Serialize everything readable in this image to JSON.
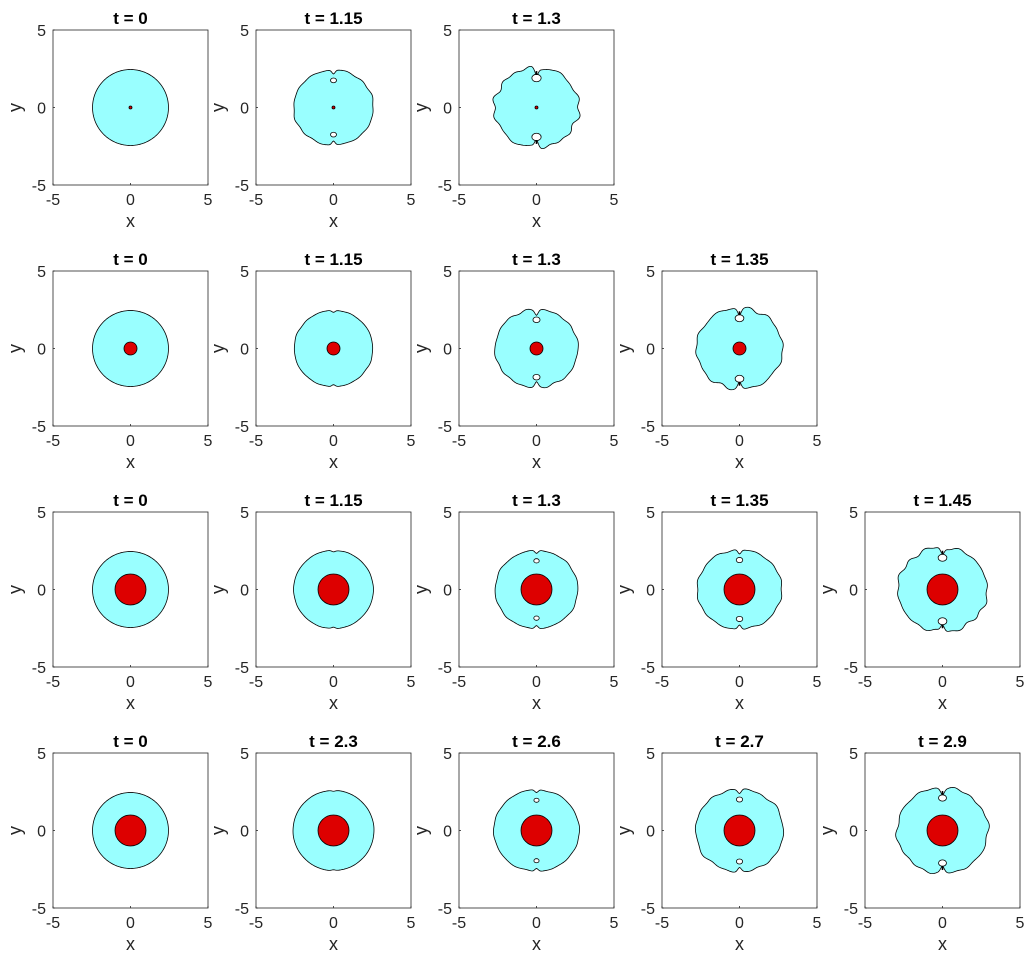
{
  "colors": {
    "drop": "#99ffff",
    "core": "#dd0000",
    "outline": "#000000"
  },
  "chart_data": [
    {
      "type": "contour",
      "xlabel": "x",
      "ylabel": "y",
      "xlim": [
        -5,
        5
      ],
      "ylim": [
        -5,
        5
      ],
      "xticks": [
        "-5",
        "0",
        "5"
      ],
      "yticks": [
        "5",
        "0",
        "-5"
      ],
      "grid": false,
      "rows": [
        {
          "core_radius": 0.06,
          "panels": [
            {
              "title": "t = 0",
              "radius": 2.45,
              "deformation": 0
            },
            {
              "title": "t = 1.15",
              "radius": 2.5,
              "deformation": 0.4
            },
            {
              "title": "t = 1.3",
              "radius": 2.65,
              "deformation": 1
            }
          ]
        },
        {
          "core_radius": 0.42,
          "panels": [
            {
              "title": "t = 0",
              "radius": 2.45,
              "deformation": 0
            },
            {
              "title": "t = 1.15",
              "radius": 2.5,
              "deformation": 0.15
            },
            {
              "title": "t = 1.3",
              "radius": 2.6,
              "deformation": 0.6
            },
            {
              "title": "t = 1.35",
              "radius": 2.7,
              "deformation": 0.9
            }
          ]
        },
        {
          "core_radius": 1.0,
          "panels": [
            {
              "title": "t = 0",
              "radius": 2.45,
              "deformation": 0
            },
            {
              "title": "t = 1.15",
              "radius": 2.55,
              "deformation": 0.1
            },
            {
              "title": "t = 1.3",
              "radius": 2.6,
              "deformation": 0.3
            },
            {
              "title": "t = 1.35",
              "radius": 2.65,
              "deformation": 0.5
            },
            {
              "title": "t = 1.45",
              "radius": 2.8,
              "deformation": 0.9
            }
          ]
        },
        {
          "core_radius": 1.0,
          "panels": [
            {
              "title": "t = 0",
              "radius": 2.45,
              "deformation": 0
            },
            {
              "title": "t = 2.3",
              "radius": 2.6,
              "deformation": 0.05
            },
            {
              "title": "t = 2.6",
              "radius": 2.7,
              "deformation": 0.25
            },
            {
              "title": "t = 2.7",
              "radius": 2.75,
              "deformation": 0.45
            },
            {
              "title": "t = 2.9",
              "radius": 2.85,
              "deformation": 0.75
            }
          ]
        }
      ]
    }
  ]
}
